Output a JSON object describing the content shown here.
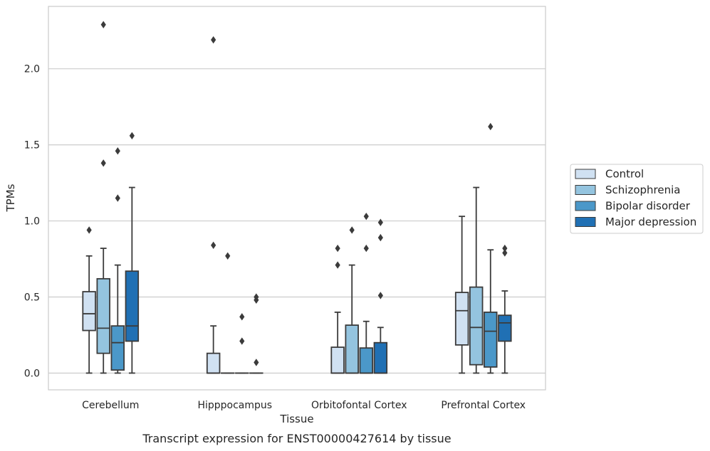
{
  "chart_data": {
    "type": "box",
    "caption": "Transcript expression for ENST00000427614 by tissue",
    "xlabel": "Tissue",
    "ylabel": "TPMs",
    "ylim": [
      -0.11,
      2.41
    ],
    "yticks": [
      "0.0",
      "0.5",
      "1.0",
      "1.5",
      "2.0"
    ],
    "ytick_values": [
      0,
      0.5,
      1.0,
      1.5,
      2.0
    ],
    "grid": true,
    "legend_position": "right",
    "categories": [
      "Cerebellum",
      "Hipppocampus",
      "Orbitofontal Cortex",
      "Prefrontal Cortex"
    ],
    "series": [
      {
        "name": "Control",
        "color": "#d0e1f2",
        "boxes": [
          {
            "whislo": 0.0,
            "q1": 0.28,
            "med": 0.39,
            "q3": 0.535,
            "whishi": 0.77,
            "fliers": [
              0.94
            ]
          },
          {
            "whislo": 0.0,
            "q1": 0.0,
            "med": 0.0,
            "q3": 0.13,
            "whishi": 0.31,
            "fliers": [
              0.84,
              2.19
            ]
          },
          {
            "whislo": 0.0,
            "q1": 0.0,
            "med": 0.0,
            "q3": 0.17,
            "whishi": 0.4,
            "fliers": [
              0.71,
              0.82
            ]
          },
          {
            "whislo": 0.0,
            "q1": 0.185,
            "med": 0.41,
            "q3": 0.53,
            "whishi": 1.03,
            "fliers": []
          }
        ]
      },
      {
        "name": "Schizophrenia",
        "color": "#94c4df",
        "boxes": [
          {
            "whislo": 0.0,
            "q1": 0.13,
            "med": 0.295,
            "q3": 0.62,
            "whishi": 0.82,
            "fliers": [
              1.38,
              2.29
            ]
          },
          {
            "whislo": 0.0,
            "q1": 0.0,
            "med": 0.0,
            "q3": 0.0,
            "whishi": 0.0,
            "fliers": [
              0.77
            ]
          },
          {
            "whislo": 0.0,
            "q1": 0.0,
            "med": 0.0,
            "q3": 0.315,
            "whishi": 0.71,
            "fliers": [
              0.94
            ]
          },
          {
            "whislo": 0.0,
            "q1": 0.055,
            "med": 0.3,
            "q3": 0.565,
            "whishi": 1.22,
            "fliers": []
          }
        ]
      },
      {
        "name": "Bipolar disorder",
        "color": "#4b98c9",
        "boxes": [
          {
            "whislo": 0.0,
            "q1": 0.02,
            "med": 0.2,
            "q3": 0.31,
            "whishi": 0.71,
            "fliers": [
              1.15,
              1.46
            ]
          },
          {
            "whislo": 0.0,
            "q1": 0.0,
            "med": 0.0,
            "q3": 0.0,
            "whishi": 0.0,
            "fliers": [
              0.21,
              0.37
            ]
          },
          {
            "whislo": 0.0,
            "q1": 0.0,
            "med": 0.0,
            "q3": 0.165,
            "whishi": 0.34,
            "fliers": [
              0.82,
              1.03
            ]
          },
          {
            "whislo": 0.0,
            "q1": 0.04,
            "med": 0.275,
            "q3": 0.4,
            "whishi": 0.81,
            "fliers": [
              1.62
            ]
          }
        ]
      },
      {
        "name": "Major depression",
        "color": "#2070b4",
        "boxes": [
          {
            "whislo": 0.0,
            "q1": 0.21,
            "med": 0.31,
            "q3": 0.67,
            "whishi": 1.22,
            "fliers": [
              1.56
            ]
          },
          {
            "whislo": 0.0,
            "q1": 0.0,
            "med": 0.0,
            "q3": 0.0,
            "whishi": 0.0,
            "fliers": [
              0.07,
              0.48,
              0.5
            ]
          },
          {
            "whislo": 0.0,
            "q1": 0.0,
            "med": 0.0,
            "q3": 0.2,
            "whishi": 0.3,
            "fliers": [
              0.51,
              0.89,
              0.99
            ]
          },
          {
            "whislo": 0.0,
            "q1": 0.21,
            "med": 0.33,
            "q3": 0.38,
            "whishi": 0.54,
            "fliers": [
              0.79,
              0.82
            ]
          }
        ]
      }
    ]
  }
}
